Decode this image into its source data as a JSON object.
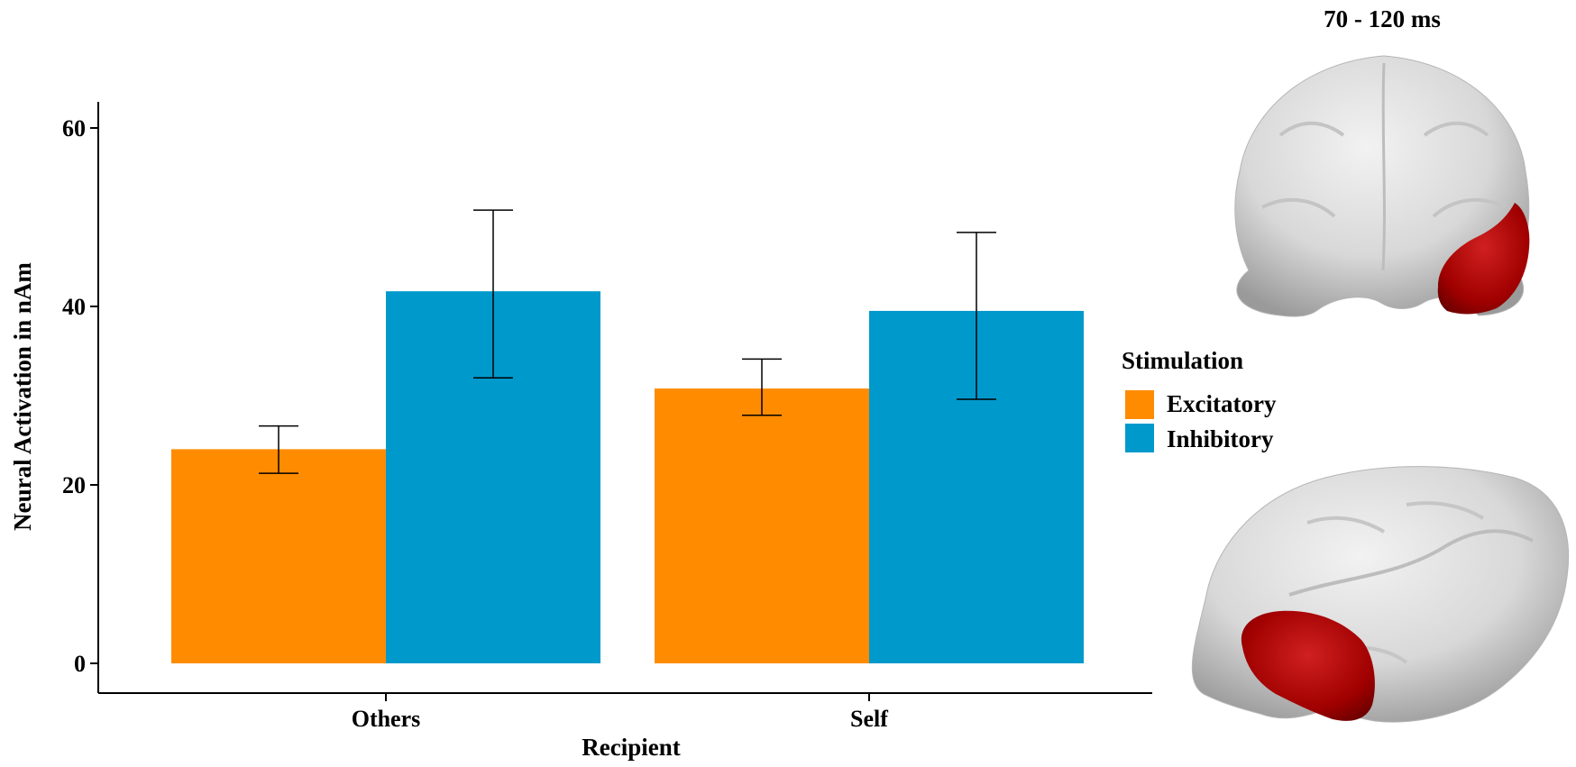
{
  "chart_data": {
    "type": "bar",
    "title": "",
    "xlabel": "Recipient",
    "ylabel": "Neural Activation in nAm",
    "categories": [
      "Others",
      "Self"
    ],
    "ylim": [
      0,
      63
    ],
    "yticks": [
      0,
      20,
      40,
      60
    ],
    "yticks_labels": [
      "0",
      "20",
      "40",
      "60"
    ],
    "grid": false,
    "legend": {
      "title": "Stimulation",
      "placement": "right"
    },
    "series": [
      {
        "name": "Excitatory",
        "color": "#FF8C00",
        "values": [
          24.0,
          30.8
        ],
        "err_low": [
          21.3,
          27.8
        ],
        "err_high": [
          26.6,
          34.1
        ]
      },
      {
        "name": "Inhibitory",
        "color": "#0099CC",
        "values": [
          41.7,
          39.5
        ],
        "err_low": [
          32.0,
          29.6
        ],
        "err_high": [
          50.8,
          48.3
        ]
      }
    ]
  },
  "brain_panel": {
    "title": "70 - 120 ms",
    "highlight_color": "#A00000",
    "views": [
      "frontal",
      "lateral"
    ]
  }
}
